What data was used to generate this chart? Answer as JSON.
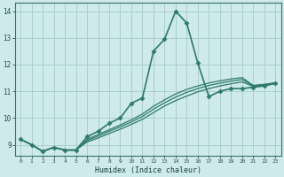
{
  "xlabel": "Humidex (Indice chaleur)",
  "bg_color": "#ceeaea",
  "line_color": "#2d7a6a",
  "grid_color": "#aacfcf",
  "xlim": [
    -0.5,
    23.5
  ],
  "ylim": [
    8.6,
    14.3
  ],
  "yticks": [
    9,
    10,
    11,
    12,
    13,
    14
  ],
  "xticks": [
    0,
    1,
    2,
    3,
    4,
    5,
    6,
    7,
    8,
    9,
    10,
    11,
    12,
    13,
    14,
    15,
    16,
    17,
    18,
    19,
    20,
    21,
    22,
    23
  ],
  "series": [
    {
      "x": [
        0,
        1,
        2,
        3,
        4,
        5,
        6,
        7,
        8,
        9,
        10,
        11,
        12,
        13,
        14,
        15,
        16,
        17,
        18,
        19,
        20,
        21,
        22,
        23
      ],
      "y": [
        9.2,
        9.0,
        8.75,
        8.9,
        8.8,
        8.8,
        9.3,
        9.5,
        9.8,
        10.0,
        10.55,
        10.75,
        12.5,
        12.95,
        14.0,
        13.55,
        12.05,
        10.8,
        11.0,
        11.1,
        11.1,
        11.15,
        11.2,
        11.3
      ],
      "marker": "D",
      "markersize": 2.5,
      "lw": 1.2
    },
    {
      "x": [
        0,
        1,
        2,
        3,
        4,
        5,
        6,
        7,
        8,
        9,
        10,
        11,
        12,
        13,
        14,
        15,
        16,
        17,
        18,
        19,
        20,
        21,
        22,
        23
      ],
      "y": [
        9.2,
        9.0,
        8.75,
        8.9,
        8.8,
        8.8,
        9.1,
        9.25,
        9.42,
        9.58,
        9.76,
        9.95,
        10.2,
        10.45,
        10.65,
        10.82,
        10.98,
        11.1,
        11.2,
        11.28,
        11.35,
        11.18,
        11.22,
        11.28
      ],
      "marker": null,
      "markersize": 0,
      "lw": 0.9
    },
    {
      "x": [
        0,
        1,
        2,
        3,
        4,
        5,
        6,
        7,
        8,
        9,
        10,
        11,
        12,
        13,
        14,
        15,
        16,
        17,
        18,
        19,
        20,
        21,
        22,
        23
      ],
      "y": [
        9.2,
        9.0,
        8.75,
        8.9,
        8.8,
        8.8,
        9.15,
        9.32,
        9.5,
        9.67,
        9.85,
        10.06,
        10.33,
        10.57,
        10.78,
        10.96,
        11.1,
        11.22,
        11.3,
        11.38,
        11.44,
        11.2,
        11.24,
        11.3
      ],
      "marker": null,
      "markersize": 0,
      "lw": 0.9
    },
    {
      "x": [
        0,
        1,
        2,
        3,
        4,
        5,
        6,
        7,
        8,
        9,
        10,
        11,
        12,
        13,
        14,
        15,
        16,
        17,
        18,
        19,
        20,
        21,
        22,
        23
      ],
      "y": [
        9.2,
        9.0,
        8.75,
        8.9,
        8.8,
        8.8,
        9.2,
        9.38,
        9.56,
        9.74,
        9.93,
        10.15,
        10.44,
        10.68,
        10.9,
        11.07,
        11.2,
        11.31,
        11.39,
        11.46,
        11.51,
        11.22,
        11.26,
        11.32
      ],
      "marker": null,
      "markersize": 0,
      "lw": 0.9
    }
  ]
}
